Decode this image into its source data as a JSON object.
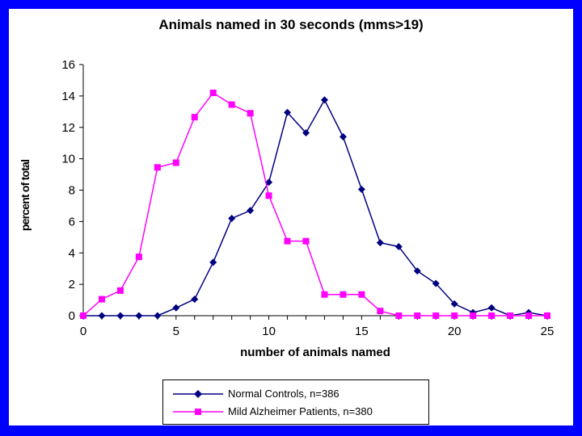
{
  "chart_data": {
    "type": "line",
    "title": "Animals named in 30 seconds (mms>19)",
    "xlabel": "number of animals named",
    "ylabel": "percent of total",
    "xlim": [
      0,
      25
    ],
    "ylim": [
      0,
      16
    ],
    "x_ticks": [
      0,
      5,
      10,
      15,
      20,
      25
    ],
    "y_ticks": [
      0,
      2,
      4,
      6,
      8,
      10,
      12,
      14,
      16
    ],
    "grid": false,
    "legend_position": "bottom",
    "x": [
      0,
      1,
      2,
      3,
      4,
      5,
      6,
      7,
      8,
      9,
      10,
      11,
      12,
      13,
      14,
      15,
      16,
      17,
      18,
      19,
      20,
      21,
      22,
      23,
      24,
      25
    ],
    "series": [
      {
        "name": "Normal Controls, n=386",
        "color": "#000080",
        "marker": "diamond",
        "values": [
          0,
          0,
          0,
          0,
          0,
          0.5,
          1.05,
          3.4,
          6.2,
          6.7,
          8.5,
          12.95,
          11.65,
          13.75,
          11.4,
          8.05,
          4.65,
          4.4,
          2.85,
          2.05,
          0.75,
          0.2,
          0.5,
          0,
          0.2,
          0
        ]
      },
      {
        "name": "Mild Alzheimer Patients, n=380",
        "color": "#ff00ff",
        "marker": "square",
        "values": [
          0,
          1.05,
          1.6,
          3.75,
          9.45,
          9.75,
          12.65,
          14.2,
          13.45,
          12.9,
          7.65,
          4.75,
          4.75,
          1.35,
          1.35,
          1.35,
          0.3,
          0,
          0,
          0,
          0,
          0,
          0,
          0,
          0,
          0
        ]
      }
    ]
  }
}
